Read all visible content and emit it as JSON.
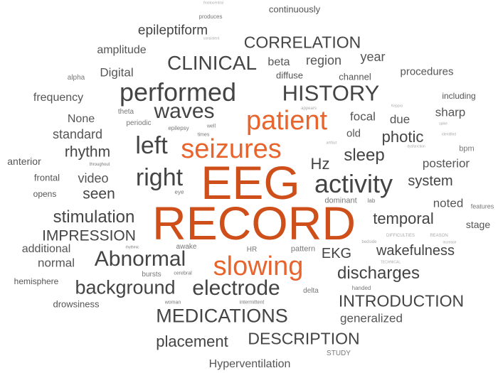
{
  "palette": {
    "dark": "#444444",
    "mid": "#555555",
    "light": "#777777",
    "faint": "#aaaaaa",
    "accent": "#e8642c",
    "accent_dark": "#cf4f1a"
  },
  "words": [
    {
      "text": "EEG",
      "weight": 100,
      "color": "accent_dark"
    },
    {
      "text": "RECORD",
      "weight": 100,
      "color": "accent_dark"
    },
    {
      "text": "patient",
      "weight": 55,
      "color": "accent"
    },
    {
      "text": "seizures",
      "weight": 55,
      "color": "accent"
    },
    {
      "text": "slowing",
      "weight": 50,
      "color": "accent"
    },
    {
      "text": "performed",
      "weight": 45,
      "color": "dark"
    },
    {
      "text": "activity",
      "weight": 45,
      "color": "dark"
    },
    {
      "text": "right",
      "weight": 42,
      "color": "dark"
    },
    {
      "text": "left",
      "weight": 42,
      "color": "dark"
    },
    {
      "text": "waves",
      "weight": 40,
      "color": "dark"
    },
    {
      "text": "HISTORY",
      "weight": 40,
      "color": "dark"
    },
    {
      "text": "Abnormal",
      "weight": 40,
      "color": "dark"
    },
    {
      "text": "electrode",
      "weight": 38,
      "color": "dark"
    },
    {
      "text": "background",
      "weight": 35,
      "color": "dark"
    },
    {
      "text": "MEDICATIONS",
      "weight": 35,
      "color": "dark"
    },
    {
      "text": "CLINICAL",
      "weight": 35,
      "color": "dark"
    },
    {
      "text": "discharges",
      "weight": 32,
      "color": "dark"
    },
    {
      "text": "INTRODUCTION",
      "weight": 30,
      "color": "dark"
    },
    {
      "text": "DESCRIPTION",
      "weight": 30,
      "color": "dark"
    },
    {
      "text": "CORRELATION",
      "weight": 30,
      "color": "dark"
    },
    {
      "text": "sleep",
      "weight": 30,
      "color": "dark"
    },
    {
      "text": "stimulation",
      "weight": 30,
      "color": "dark"
    },
    {
      "text": "temporal",
      "weight": 28,
      "color": "dark"
    },
    {
      "text": "Hz",
      "weight": 28,
      "color": "dark"
    },
    {
      "text": "photic",
      "weight": 28,
      "color": "dark"
    },
    {
      "text": "placement",
      "weight": 28,
      "color": "dark"
    },
    {
      "text": "wakefulness",
      "weight": 26,
      "color": "dark"
    },
    {
      "text": "IMPRESSION",
      "weight": 26,
      "color": "dark"
    },
    {
      "text": "rhythm",
      "weight": 26,
      "color": "dark"
    },
    {
      "text": "seen",
      "weight": 26,
      "color": "dark"
    },
    {
      "text": "EKG",
      "weight": 26,
      "color": "dark"
    },
    {
      "text": "system",
      "weight": 24,
      "color": "dark"
    },
    {
      "text": "epileptiform",
      "weight": 24,
      "color": "dark"
    },
    {
      "text": "region",
      "weight": 22,
      "color": "mid"
    },
    {
      "text": "video",
      "weight": 22,
      "color": "mid"
    },
    {
      "text": "standard",
      "weight": 22,
      "color": "mid"
    },
    {
      "text": "focal",
      "weight": 22,
      "color": "mid"
    },
    {
      "text": "generalized",
      "weight": 20,
      "color": "mid"
    },
    {
      "text": "noted",
      "weight": 20,
      "color": "mid"
    },
    {
      "text": "posterior",
      "weight": 20,
      "color": "mid"
    },
    {
      "text": "sharp",
      "weight": 20,
      "color": "mid"
    },
    {
      "text": "due",
      "weight": 20,
      "color": "mid"
    },
    {
      "text": "year",
      "weight": 20,
      "color": "mid"
    },
    {
      "text": "Digital",
      "weight": 20,
      "color": "mid"
    },
    {
      "text": "normal",
      "weight": 20,
      "color": "mid"
    },
    {
      "text": "Hyperventilation",
      "weight": 18,
      "color": "mid"
    },
    {
      "text": "amplitude",
      "weight": 18,
      "color": "mid"
    },
    {
      "text": "frequency",
      "weight": 18,
      "color": "mid"
    },
    {
      "text": "beta",
      "weight": 18,
      "color": "mid"
    },
    {
      "text": "additional",
      "weight": 18,
      "color": "mid"
    },
    {
      "text": "None",
      "weight": 18,
      "color": "mid"
    },
    {
      "text": "procedures",
      "weight": 17,
      "color": "mid"
    },
    {
      "text": "old",
      "weight": 17,
      "color": "mid"
    },
    {
      "text": "stage",
      "weight": 16,
      "color": "mid"
    },
    {
      "text": "anterior",
      "weight": 16,
      "color": "mid"
    },
    {
      "text": "frontal",
      "weight": 15,
      "color": "mid"
    },
    {
      "text": "drowsiness",
      "weight": 15,
      "color": "mid"
    },
    {
      "text": "hemisphere",
      "weight": 14,
      "color": "mid"
    },
    {
      "text": "diffuse",
      "weight": 15,
      "color": "mid"
    },
    {
      "text": "channel",
      "weight": 15,
      "color": "mid"
    },
    {
      "text": "including",
      "weight": 14,
      "color": "mid"
    },
    {
      "text": "continuously",
      "weight": 15,
      "color": "mid"
    },
    {
      "text": "opens",
      "weight": 14,
      "color": "mid"
    },
    {
      "text": "pattern",
      "weight": 13,
      "color": "light"
    },
    {
      "text": "dominant",
      "weight": 13,
      "color": "light"
    },
    {
      "text": "bpm",
      "weight": 13,
      "color": "light"
    },
    {
      "text": "awake",
      "weight": 12,
      "color": "light"
    },
    {
      "text": "bursts",
      "weight": 12,
      "color": "light"
    },
    {
      "text": "STUDY",
      "weight": 12,
      "color": "light"
    },
    {
      "text": "delta",
      "weight": 12,
      "color": "light"
    },
    {
      "text": "alpha",
      "weight": 12,
      "color": "light"
    },
    {
      "text": "theta",
      "weight": 12,
      "color": "light"
    },
    {
      "text": "periodic",
      "weight": 12,
      "color": "light"
    },
    {
      "text": "HR",
      "weight": 12,
      "color": "light"
    },
    {
      "text": "epilepsy",
      "weight": 10,
      "color": "light"
    },
    {
      "text": "times",
      "weight": 9,
      "color": "light"
    },
    {
      "text": "well",
      "weight": 9,
      "color": "light"
    },
    {
      "text": "features",
      "weight": 11,
      "color": "light"
    },
    {
      "text": "handed",
      "weight": 10,
      "color": "light"
    },
    {
      "text": "intermittent",
      "weight": 9,
      "color": "light"
    },
    {
      "text": "woman",
      "weight": 9,
      "color": "light"
    },
    {
      "text": "cerebral",
      "weight": 9,
      "color": "light"
    },
    {
      "text": "eye",
      "weight": 9,
      "color": "light"
    },
    {
      "text": "lab",
      "weight": 10,
      "color": "light"
    },
    {
      "text": "produces",
      "weight": 10,
      "color": "light"
    },
    {
      "text": "throughout",
      "weight": 8,
      "color": "light"
    },
    {
      "text": "rhythmic",
      "weight": 7,
      "color": "light"
    },
    {
      "text": "appears",
      "weight": 8,
      "color": "faint"
    },
    {
      "text": "Keppra",
      "weight": 7,
      "color": "faint"
    },
    {
      "text": "spike",
      "weight": 7,
      "color": "faint"
    },
    {
      "text": "identified",
      "weight": 7,
      "color": "faint"
    },
    {
      "text": "artifact",
      "weight": 7,
      "color": "faint"
    },
    {
      "text": "dysfunction",
      "weight": 7,
      "color": "faint"
    },
    {
      "text": "bedside",
      "weight": 7,
      "color": "faint"
    },
    {
      "text": "increase",
      "weight": 7,
      "color": "faint"
    },
    {
      "text": "DIFFICULTIES",
      "weight": 8,
      "color": "faint"
    },
    {
      "text": "REASON",
      "weight": 8,
      "color": "faint"
    },
    {
      "text": "TECHNICAL",
      "weight": 7,
      "color": "faint"
    },
    {
      "text": "frontocentral",
      "weight": 7,
      "color": "faint"
    },
    {
      "text": "consistent",
      "weight": 7,
      "color": "faint"
    }
  ]
}
